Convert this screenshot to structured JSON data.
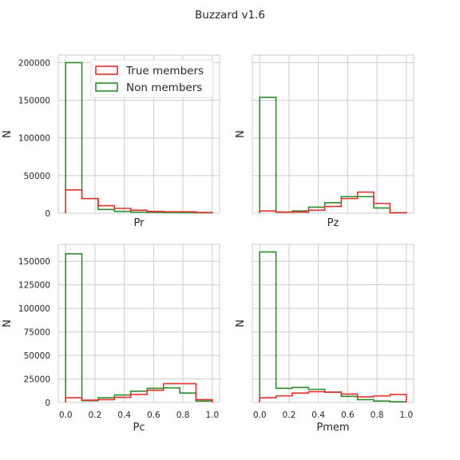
{
  "chart_data": {
    "title": "Buzzard v1.6",
    "type": "histogram",
    "legend": {
      "placement": "top-right",
      "entries": [
        {
          "name": "True members",
          "color": "#e8302a"
        },
        {
          "name": "Non members",
          "color": "#2e8b2e"
        }
      ]
    },
    "colors": {
      "true": "#e8302a",
      "non": "#2e8b2e",
      "grid": "#cccccc"
    },
    "bin_edges": [
      0.0,
      0.111,
      0.222,
      0.333,
      0.444,
      0.556,
      0.667,
      0.778,
      0.889,
      1.0
    ],
    "panels": [
      {
        "id": "pr",
        "xlabel": "Pr",
        "ylabel": "N",
        "xlim": [
          -0.05,
          1.05
        ],
        "ylim": [
          0,
          210000
        ],
        "yticks": [
          0,
          50000,
          100000,
          150000,
          200000
        ],
        "show_xticks": false,
        "show_yticks": true,
        "legend": true,
        "series": [
          {
            "name": "True members",
            "values": [
              31000,
              19500,
              10000,
              6500,
              4000,
              2500,
              2000,
              2000,
              1000
            ]
          },
          {
            "name": "Non members",
            "values": [
              200000,
              19500,
              5000,
              2500,
              1500,
              1200,
              1000,
              800,
              600
            ]
          }
        ]
      },
      {
        "id": "pz",
        "xlabel": "Pz",
        "ylabel": "N",
        "xlim": [
          -0.05,
          1.05
        ],
        "ylim": [
          0,
          210000
        ],
        "yticks": [
          0,
          50000,
          100000,
          150000,
          200000
        ],
        "show_xticks": false,
        "show_yticks": false,
        "legend": false,
        "series": [
          {
            "name": "True members",
            "values": [
              3000,
              1500,
              1500,
              4000,
              9000,
              19500,
              28000,
              13000,
              500
            ]
          },
          {
            "name": "Non members",
            "values": [
              154000,
              1500,
              3000,
              8000,
              14000,
              22000,
              22000,
              7000,
              800
            ]
          }
        ]
      },
      {
        "id": "pc",
        "xlabel": "Pc",
        "ylabel": "N",
        "xlim": [
          -0.05,
          1.05
        ],
        "ylim": [
          0,
          168000
        ],
        "yticks": [
          0,
          25000,
          50000,
          75000,
          100000,
          125000,
          150000
        ],
        "xticks": [
          0.0,
          0.2,
          0.4,
          0.6,
          0.8,
          1.0
        ],
        "xtick_labels": [
          "0.0",
          "0.2",
          "0.4",
          "0.6",
          "0.8",
          "1.0"
        ],
        "show_xticks": true,
        "show_yticks": true,
        "legend": false,
        "series": [
          {
            "name": "True members",
            "values": [
              5000,
              2500,
              3000,
              5500,
              8500,
              13000,
              20000,
              20000,
              3000
            ]
          },
          {
            "name": "Non members",
            "values": [
              158000,
              2000,
              5000,
              8000,
              12000,
              15000,
              15500,
              10000,
              1500
            ]
          }
        ]
      },
      {
        "id": "pmem",
        "xlabel": "Pmem",
        "ylabel": "N",
        "xlim": [
          -0.05,
          1.05
        ],
        "ylim": [
          0,
          168000
        ],
        "yticks": [
          0,
          25000,
          50000,
          75000,
          100000,
          125000,
          150000
        ],
        "xticks": [
          0.0,
          0.2,
          0.4,
          0.6,
          0.8,
          1.0
        ],
        "xtick_labels": [
          "0.0",
          "0.2",
          "0.4",
          "0.6",
          "0.8",
          "1.0"
        ],
        "show_xticks": true,
        "show_yticks": false,
        "legend": false,
        "series": [
          {
            "name": "True members",
            "values": [
              5000,
              7000,
              10000,
              11500,
              11000,
              9000,
              6000,
              7000,
              8500
            ]
          },
          {
            "name": "Non members",
            "values": [
              160000,
              15000,
              16000,
              14000,
              11000,
              6500,
              3000,
              1500,
              800
            ]
          }
        ]
      }
    ]
  }
}
